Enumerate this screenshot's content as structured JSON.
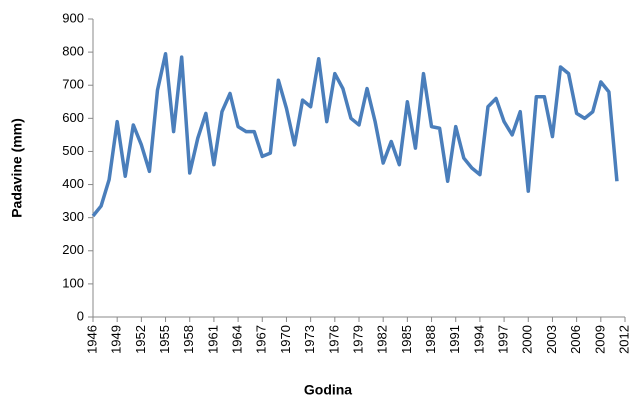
{
  "chart_data": {
    "type": "line",
    "xlabel": "Godina",
    "ylabel": "Padavine (mm)",
    "x": [
      1946,
      1947,
      1948,
      1949,
      1950,
      1951,
      1952,
      1953,
      1954,
      1955,
      1956,
      1957,
      1958,
      1959,
      1960,
      1961,
      1962,
      1963,
      1964,
      1965,
      1966,
      1967,
      1968,
      1969,
      1970,
      1971,
      1972,
      1973,
      1974,
      1975,
      1976,
      1977,
      1978,
      1979,
      1980,
      1981,
      1982,
      1983,
      1984,
      1985,
      1986,
      1987,
      1988,
      1989,
      1990,
      1991,
      1992,
      1993,
      1994,
      1995,
      1996,
      1997,
      1998,
      1999,
      2000,
      2001,
      2002,
      2003,
      2004,
      2005,
      2006,
      2007,
      2008,
      2009,
      2010,
      2011
    ],
    "series": [
      {
        "color": "#4a7ebb",
        "values": [
          305,
          335,
          415,
          590,
          425,
          580,
          520,
          440,
          685,
          795,
          560,
          785,
          435,
          540,
          615,
          460,
          620,
          675,
          575,
          560,
          560,
          485,
          495,
          715,
          630,
          520,
          655,
          635,
          780,
          590,
          735,
          690,
          600,
          580,
          690,
          590,
          465,
          530,
          460,
          650,
          510,
          735,
          575,
          570,
          410,
          575,
          480,
          450,
          430,
          635,
          660,
          590,
          550,
          620,
          380,
          665,
          665,
          545,
          755,
          735,
          615,
          600,
          620,
          710,
          680,
          410
        ]
      }
    ],
    "xlim": [
      1946,
      2012
    ],
    "xticks": [
      1946,
      1949,
      1952,
      1955,
      1958,
      1961,
      1964,
      1967,
      1970,
      1973,
      1976,
      1979,
      1982,
      1985,
      1988,
      1991,
      1994,
      1997,
      2000,
      2003,
      2006,
      2009,
      2012
    ],
    "ylim": [
      0,
      900
    ],
    "yticks": [
      0,
      100,
      200,
      300,
      400,
      500,
      600,
      700,
      800,
      900
    ],
    "grid": false
  }
}
